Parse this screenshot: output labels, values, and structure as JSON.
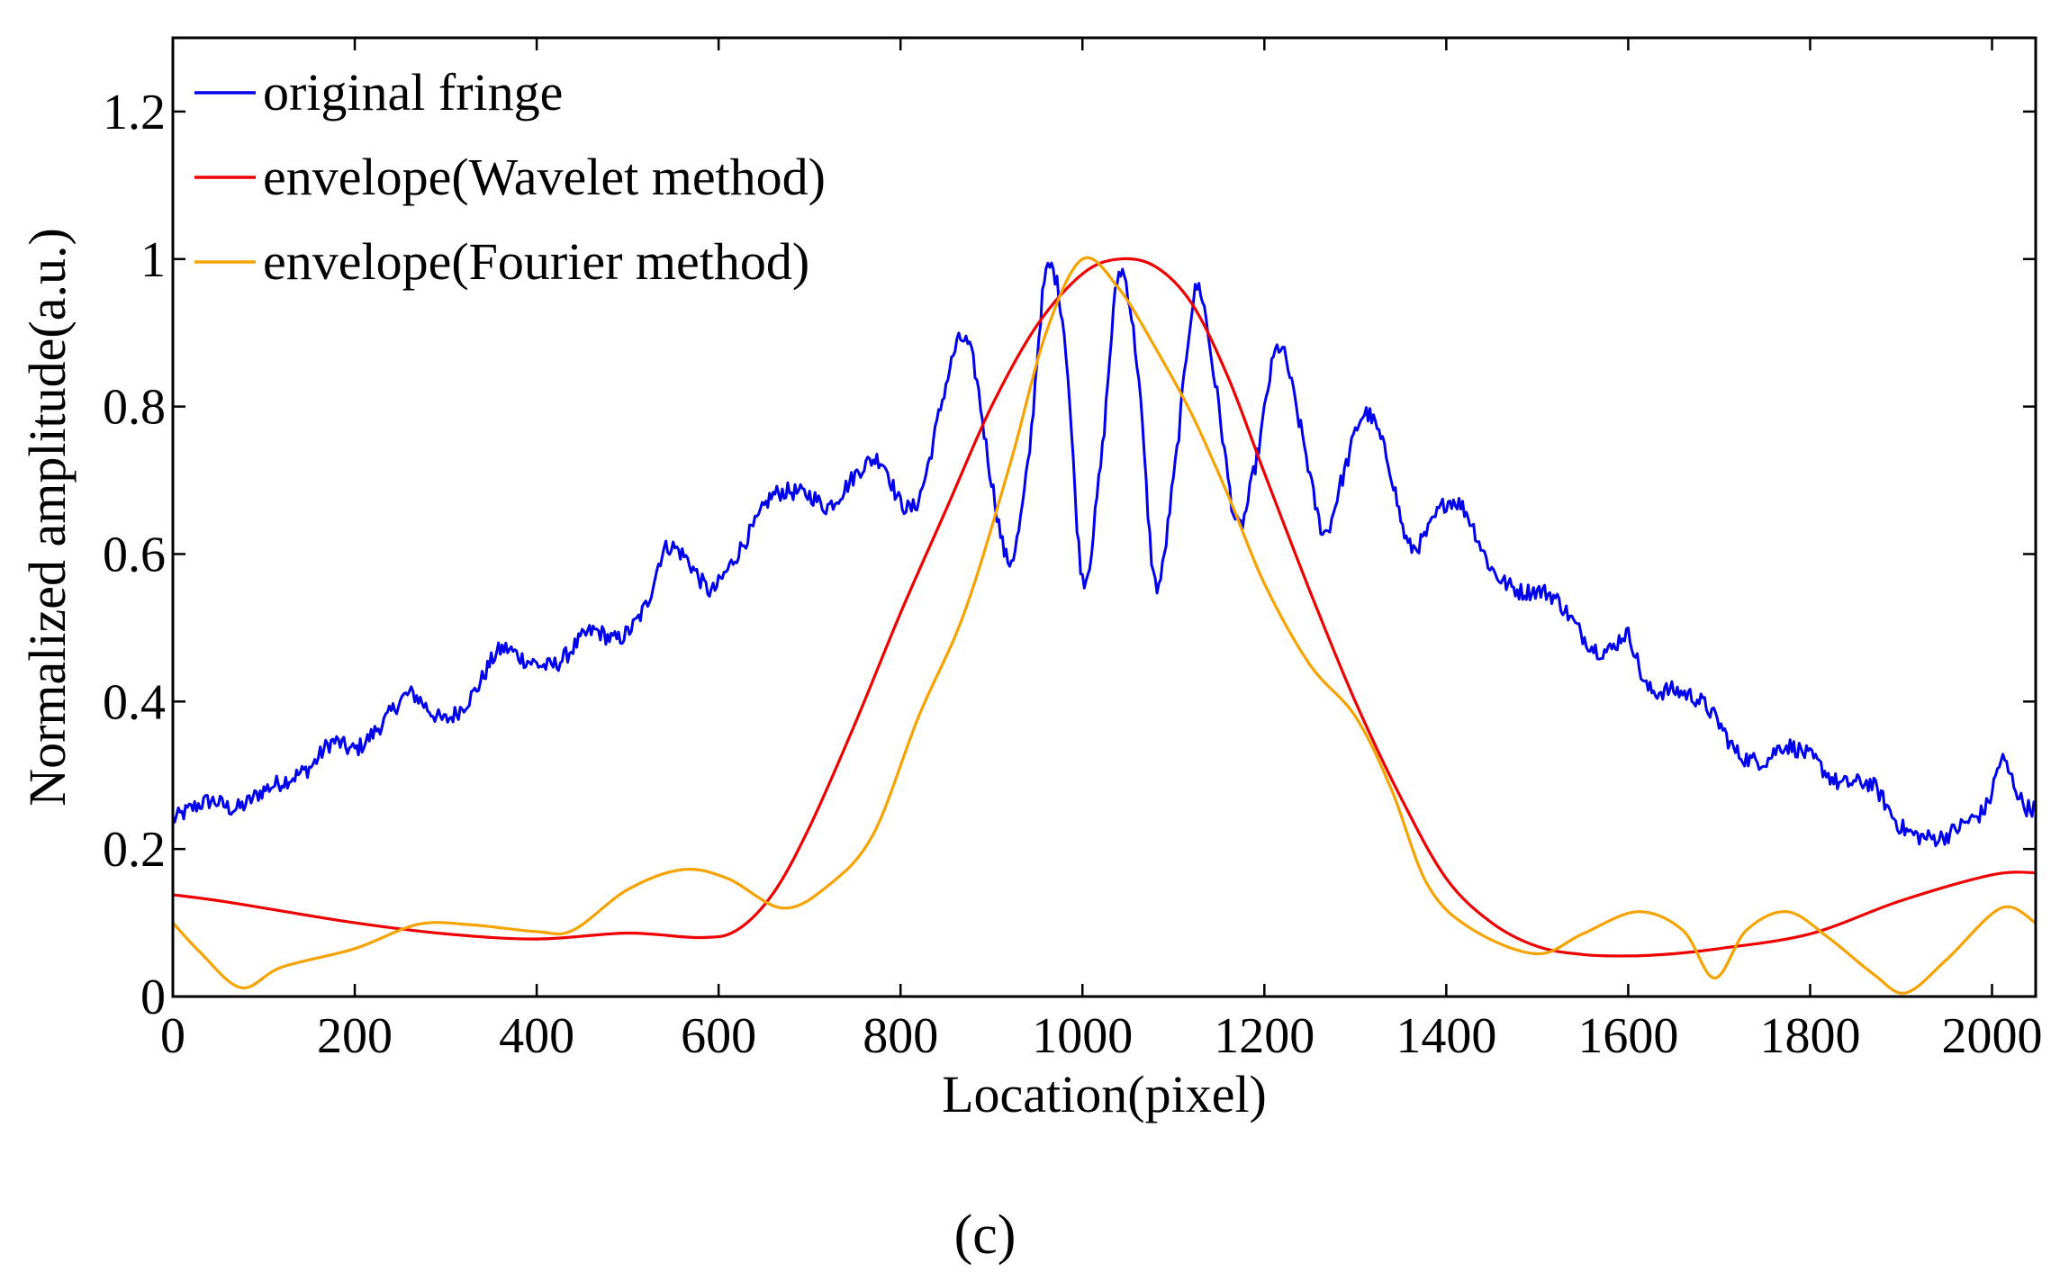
{
  "chart_data": {
    "type": "line",
    "title": "",
    "xlabel": "Location(pixel)",
    "ylabel": "Normalized amplitude(a.u.)",
    "xlim": [
      0,
      2048
    ],
    "ylim": [
      0,
      1.3
    ],
    "xticks": [
      0,
      200,
      400,
      600,
      800,
      1000,
      1200,
      1400,
      1600,
      1800,
      2000
    ],
    "xtick_labels": [
      "0",
      "200",
      "400",
      "600",
      "800",
      "1000",
      "1200",
      "1400",
      "1600",
      "1800",
      "2000"
    ],
    "yticks": [
      0,
      0.2,
      0.4,
      0.6,
      0.8,
      1,
      1.2
    ],
    "ytick_labels": [
      "0",
      "0.2",
      "0.4",
      "0.6",
      "0.8",
      "1",
      "1.2"
    ],
    "grid": false,
    "legend_position": "top-left",
    "panel_label": "(c)",
    "series": [
      {
        "name": "original fringe",
        "color": "#0000ee",
        "noise": 0.012,
        "x": [
          0,
          40,
          70,
          100,
          150,
          175,
          200,
          230,
          260,
          285,
          300,
          330,
          360,
          390,
          420,
          460,
          490,
          520,
          540,
          560,
          590,
          600,
          640,
          660,
          700,
          720,
          760,
          780,
          800,
          820,
          850,
          865,
          880,
          900,
          920,
          940,
          960,
          980,
          1000,
          1020,
          1040,
          1060,
          1080,
          1100,
          1125,
          1145,
          1170,
          1190,
          1215,
          1240,
          1265,
          1285,
          1310,
          1335,
          1360,
          1400,
          1420,
          1450,
          1480,
          1500,
          1520,
          1560,
          1580,
          1600,
          1620,
          1650,
          1680,
          1700,
          1720,
          1750,
          1770,
          1800,
          1830,
          1850,
          1870,
          1900,
          1940,
          1970,
          1995,
          2010,
          2020,
          2035,
          2048
        ],
        "y": [
          0.24,
          0.265,
          0.255,
          0.28,
          0.31,
          0.345,
          0.335,
          0.37,
          0.41,
          0.385,
          0.375,
          0.41,
          0.47,
          0.455,
          0.45,
          0.495,
          0.485,
          0.53,
          0.605,
          0.6,
          0.55,
          0.56,
          0.64,
          0.68,
          0.68,
          0.665,
          0.72,
          0.725,
          0.67,
          0.675,
          0.83,
          0.89,
          0.86,
          0.7,
          0.59,
          0.72,
          0.98,
          0.9,
          0.57,
          0.72,
          0.98,
          0.86,
          0.56,
          0.7,
          0.96,
          0.84,
          0.64,
          0.72,
          0.88,
          0.77,
          0.63,
          0.7,
          0.79,
          0.73,
          0.61,
          0.67,
          0.66,
          0.58,
          0.55,
          0.55,
          0.54,
          0.475,
          0.47,
          0.49,
          0.42,
          0.415,
          0.4,
          0.37,
          0.33,
          0.32,
          0.34,
          0.325,
          0.29,
          0.29,
          0.285,
          0.23,
          0.215,
          0.235,
          0.26,
          0.32,
          0.3,
          0.26,
          0.255
        ]
      },
      {
        "name": "envelope(Wavelet method)",
        "color": "#ee0000",
        "noise": 0,
        "x": [
          0,
          50,
          100,
          200,
          300,
          400,
          500,
          580,
          620,
          660,
          700,
          750,
          800,
          850,
          900,
          950,
          1000,
          1040,
          1080,
          1120,
          1160,
          1200,
          1250,
          1300,
          1350,
          1400,
          1450,
          1500,
          1550,
          1600,
          1650,
          1700,
          1800,
          1900,
          2000,
          2048
        ],
        "y": [
          0.138,
          0.13,
          0.12,
          0.1,
          0.085,
          0.078,
          0.086,
          0.08,
          0.09,
          0.14,
          0.23,
          0.37,
          0.52,
          0.66,
          0.8,
          0.91,
          0.98,
          1.0,
          0.99,
          0.94,
          0.84,
          0.71,
          0.55,
          0.4,
          0.27,
          0.16,
          0.1,
          0.068,
          0.057,
          0.055,
          0.058,
          0.065,
          0.085,
          0.13,
          0.165,
          0.168
        ]
      },
      {
        "name": "envelope(Fourier method)",
        "color": "#f5a300",
        "noise": 0,
        "x": [
          0,
          30,
          75,
          120,
          200,
          270,
          330,
          400,
          440,
          500,
          560,
          610,
          670,
          720,
          770,
          820,
          870,
          920,
          960,
          1000,
          1040,
          1080,
          1120,
          1160,
          1200,
          1250,
          1300,
          1340,
          1380,
          1430,
          1500,
          1550,
          1610,
          1660,
          1695,
          1730,
          1775,
          1820,
          1870,
          1905,
          1950,
          2010,
          2048
        ],
        "y": [
          0.1,
          0.06,
          0.012,
          0.04,
          0.065,
          0.098,
          0.097,
          0.088,
          0.09,
          0.145,
          0.172,
          0.16,
          0.12,
          0.15,
          0.22,
          0.38,
          0.52,
          0.72,
          0.9,
          1.0,
          0.96,
          0.88,
          0.79,
          0.68,
          0.56,
          0.45,
          0.38,
          0.28,
          0.15,
          0.09,
          0.058,
          0.085,
          0.115,
          0.09,
          0.025,
          0.09,
          0.115,
          0.08,
          0.03,
          0.005,
          0.05,
          0.12,
          0.1
        ]
      }
    ]
  }
}
